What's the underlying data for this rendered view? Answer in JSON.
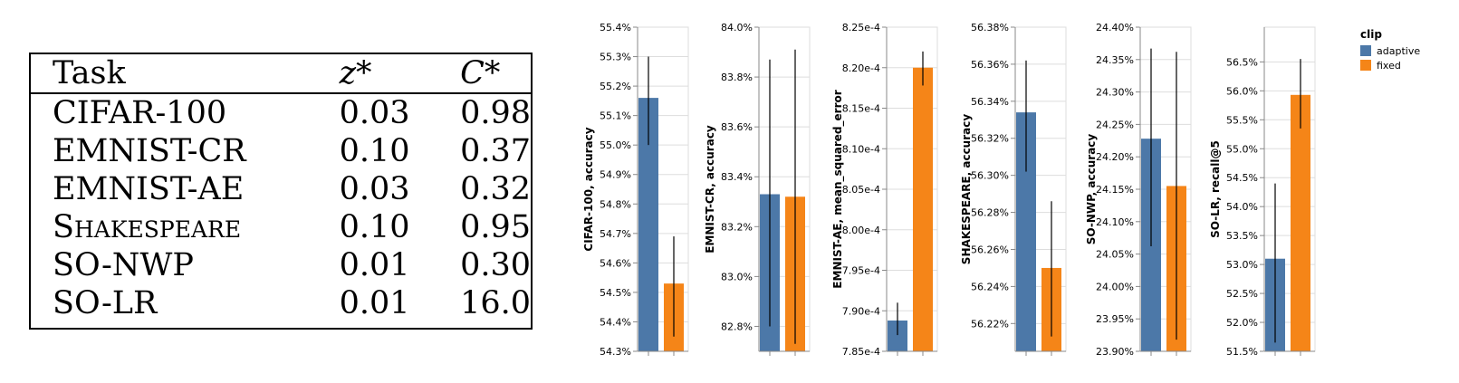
{
  "table": {
    "headers": [
      "Task",
      "z*",
      "C*"
    ],
    "rows": [
      {
        "task": "CIFAR-100",
        "z": "0.03",
        "c": "0.98"
      },
      {
        "task": "EMNIST-CR",
        "z": "0.10",
        "c": "0.37"
      },
      {
        "task": "EMNIST-AE",
        "z": "0.03",
        "c": "0.32"
      },
      {
        "task": "Shakespeare",
        "z": "0.10",
        "c": "0.95"
      },
      {
        "task": "SO-NWP",
        "z": "0.01",
        "c": "0.30"
      },
      {
        "task": "SO-LR",
        "z": "0.01",
        "c": "16.0"
      }
    ]
  },
  "legend": {
    "title": "clip",
    "items": [
      {
        "label": "adaptive",
        "color": "#4c78a8"
      },
      {
        "label": "fixed",
        "color": "#f58518"
      }
    ]
  },
  "chart_data": [
    {
      "type": "bar",
      "categories": [
        "adaptive",
        "fixed"
      ],
      "ylabel": "CIFAR-100, accuracy",
      "ylim": [
        54.3,
        55.4
      ],
      "ticks": [
        54.3,
        54.4,
        54.5,
        54.6,
        54.7,
        54.8,
        54.9,
        55.0,
        55.1,
        55.2,
        55.3,
        55.4
      ],
      "tick_labels": [
        "54.3%",
        "54.4%",
        "54.5%",
        "54.6%",
        "54.7%",
        "54.8%",
        "54.9%",
        "55.0%",
        "55.1%",
        "55.2%",
        "55.3%",
        "55.4%"
      ],
      "values": [
        55.16,
        54.53
      ],
      "err_low": [
        55.0,
        54.35
      ],
      "err_high": [
        55.3,
        54.69
      ]
    },
    {
      "type": "bar",
      "categories": [
        "adaptive",
        "fixed"
      ],
      "ylabel": "EMNIST-CR, accuracy",
      "ylim": [
        82.7,
        84.0
      ],
      "ticks": [
        82.8,
        83.0,
        83.2,
        83.4,
        83.6,
        83.8,
        84.0
      ],
      "tick_labels": [
        "82.8%",
        "83.0%",
        "83.2%",
        "83.4%",
        "83.6%",
        "83.8%",
        "84.0%"
      ],
      "values": [
        83.33,
        83.32
      ],
      "err_low": [
        82.8,
        82.73
      ],
      "err_high": [
        83.87,
        83.91
      ]
    },
    {
      "type": "bar",
      "categories": [
        "adaptive",
        "fixed"
      ],
      "ylabel": "EMNIST-AE, mean_squared_error",
      "ylim": [
        7.85,
        8.25
      ],
      "ticks": [
        7.85,
        7.9,
        7.95,
        8.0,
        8.05,
        8.1,
        8.15,
        8.2,
        8.25
      ],
      "tick_labels": [
        "7.85e-4",
        "7.90e-4",
        "7.95e-4",
        "8.00e-4",
        "8.05e-4",
        "8.10e-4",
        "8.15e-4",
        "8.20e-4",
        "8.25e-4"
      ],
      "values": [
        7.888,
        8.2
      ],
      "err_low": [
        7.87,
        8.178
      ],
      "err_high": [
        7.91,
        8.22
      ]
    },
    {
      "type": "bar",
      "categories": [
        "adaptive",
        "fixed"
      ],
      "ylabel": "SHAKESPEARE, accuracy",
      "ylim": [
        56.205,
        56.38
      ],
      "ticks": [
        56.22,
        56.24,
        56.26,
        56.28,
        56.3,
        56.32,
        56.34,
        56.36,
        56.38
      ],
      "tick_labels": [
        "56.22%",
        "56.24%",
        "56.26%",
        "56.28%",
        "56.30%",
        "56.32%",
        "56.34%",
        "56.36%",
        "56.38%"
      ],
      "values": [
        56.334,
        56.25
      ],
      "err_low": [
        56.302,
        56.213
      ],
      "err_high": [
        56.362,
        56.286
      ]
    },
    {
      "type": "bar",
      "categories": [
        "adaptive",
        "fixed"
      ],
      "ylabel": "SO-NWP, accuracy",
      "ylim": [
        23.9,
        24.4
      ],
      "ticks": [
        23.9,
        23.95,
        24.0,
        24.05,
        24.1,
        24.15,
        24.2,
        24.25,
        24.3,
        24.35,
        24.4
      ],
      "tick_labels": [
        "23.90%",
        "23.95%",
        "24.00%",
        "24.05%",
        "24.10%",
        "24.15%",
        "24.20%",
        "24.25%",
        "24.30%",
        "24.35%",
        "24.40%"
      ],
      "values": [
        24.228,
        24.155
      ],
      "err_low": [
        24.062,
        23.918
      ],
      "err_high": [
        24.367,
        24.362
      ]
    },
    {
      "type": "bar",
      "categories": [
        "adaptive",
        "fixed"
      ],
      "ylabel": "SO-LR, recall@5",
      "ylim": [
        51.5,
        57.1
      ],
      "ticks": [
        51.5,
        52.0,
        52.5,
        53.0,
        53.5,
        54.0,
        54.5,
        55.0,
        55.5,
        56.0,
        56.5
      ],
      "tick_labels": [
        "51.5%",
        "52.0%",
        "52.5%",
        "53.0%",
        "53.5%",
        "54.0%",
        "54.5%",
        "55.0%",
        "55.5%",
        "56.0%",
        "56.5%"
      ],
      "values": [
        53.1,
        55.93
      ],
      "err_low": [
        51.65,
        55.35
      ],
      "err_high": [
        54.4,
        56.55
      ]
    }
  ]
}
